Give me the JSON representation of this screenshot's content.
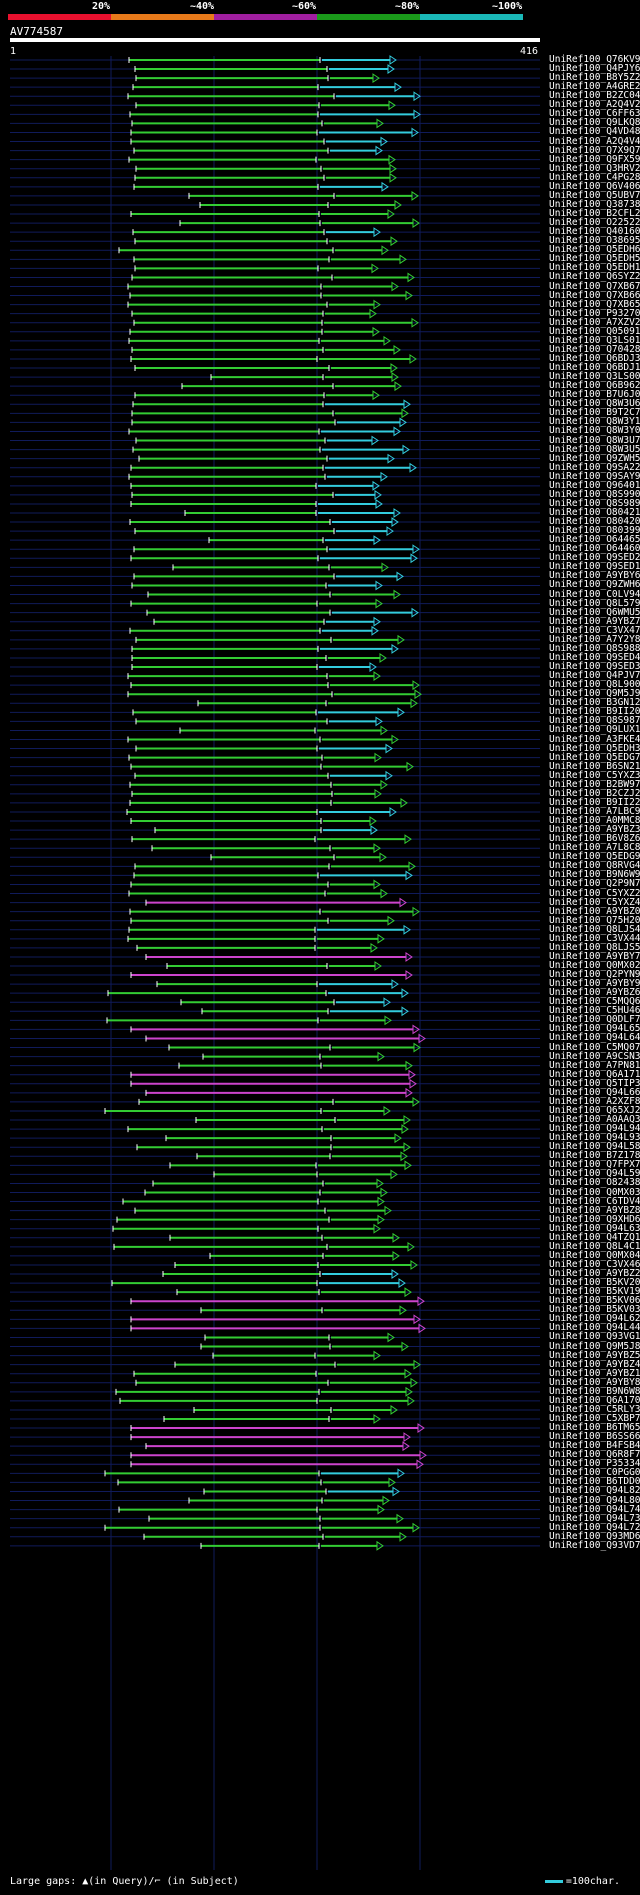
{
  "scale": {
    "labels": [
      "20%",
      "~40%",
      "~60%",
      "~80%",
      "~100%"
    ],
    "colors": [
      "#e8102e",
      "#e87a1a",
      "#a11ea0",
      "#1a9a1a",
      "#1ab8b8"
    ]
  },
  "query_id": "AV774587",
  "ruler": {
    "start": "1",
    "end": "416"
  },
  "colors": {
    "high": "#33cc33",
    "very_high": "#33ccdd",
    "low": "#cc44cc",
    "grid": "#101b5a",
    "gap": "#ffffff"
  },
  "hits": [
    "UniRef100_Q76KV9",
    "UniRef100_Q4PJY6",
    "UniRef100_B8Y5Z2",
    "UniRef100_A4GRE2",
    "UniRef100_B2ZC04",
    "UniRef100_A2Q4V2",
    "UniRef100_C6FF63",
    "UniRef100_Q9LKQ8",
    "UniRef100_Q4VD48",
    "UniRef100_A2Q4V4",
    "UniRef100_Q7X9Q7",
    "UniRef100_Q9FX59",
    "UniRef100_Q3HRV2",
    "UniRef100_C4PG28",
    "UniRef100_Q6V406",
    "UniRef100_Q5UBV7",
    "UniRef100_Q38738",
    "UniRef100_B2CFL2",
    "UniRef100_O22522",
    "UniRef100_Q40160",
    "UniRef100_O38695",
    "UniRef100_Q5EDH6",
    "UniRef100_Q5EDH5",
    "UniRef100_Q5EDH1",
    "UniRef100_Q6SYZ2",
    "UniRef100_Q7XB67",
    "UniRef100_Q7XB66",
    "UniRef100_Q7XB65",
    "UniRef100_P93270",
    "UniRef100_A7XZV2",
    "UniRef100_Q05091",
    "UniRef100_Q3LS01",
    "UniRef100_Q70428",
    "UniRef100_Q6BDJ3",
    "UniRef100_Q6BDJ1",
    "UniRef100_Q3LS00",
    "UniRef100_Q6B962",
    "UniRef100_B7U6J0",
    "UniRef100_Q8W3U6",
    "UniRef100_B9T2C7",
    "UniRef100_Q8W3Y1",
    "UniRef100_Q8W3Y0",
    "UniRef100_Q8W3U7",
    "UniRef100_Q8W3U5",
    "UniRef100_Q9ZWH5",
    "UniRef100_Q9SA22",
    "UniRef100_Q9SAY9",
    "UniRef100_Q96401",
    "UniRef100_Q8S990",
    "UniRef100_Q8S989",
    "UniRef100_O80421",
    "UniRef100_O80420",
    "UniRef100_O80399",
    "UniRef100_O64465",
    "UniRef100_O64460",
    "UniRef100_Q9SED2",
    "UniRef100_Q9SED1",
    "UniRef100_A9YBY6",
    "UniRef100_Q9ZWH6",
    "UniRef100_C0LV94",
    "UniRef100_Q8L579",
    "UniRef100_Q6WMU5",
    "UniRef100_A9YBZ7",
    "UniRef100_C3VX47",
    "UniRef100_A7Y2Y8",
    "UniRef100_Q8S988",
    "UniRef100_Q9SED4",
    "UniRef100_Q9SED3",
    "UniRef100_Q4PJV7",
    "UniRef100_Q8L900",
    "UniRef100_Q9M5J9",
    "UniRef100_B3GN12",
    "UniRef100_B9II20",
    "UniRef100_Q8S987",
    "UniRef100_Q9LUX1",
    "UniRef100_A3FKE4",
    "UniRef100_Q5EDH3",
    "UniRef100_Q5EDG7",
    "UniRef100_B6SN21",
    "UniRef100_C5YXZ3",
    "UniRef100_B2BW97",
    "UniRef100_B2CZJ2",
    "UniRef100_B9II22",
    "UniRef100_A7LBC9",
    "UniRef100_A0MMC8",
    "UniRef100_A9YBZ3",
    "UniRef100_B6V8Z6",
    "UniRef100_A7L8C8",
    "UniRef100_Q5EDG9",
    "UniRef100_Q8RVG4",
    "UniRef100_B9N6W9",
    "UniRef100_Q2P9N7",
    "UniRef100_C5YXZ2",
    "UniRef100_C5YXZ4",
    "UniRef100_A9YBZ0",
    "UniRef100_Q75H20",
    "UniRef100_Q8LJS4",
    "UniRef100_C3VX44",
    "UniRef100_Q8LJS5",
    "UniRef100_A9YBY7",
    "UniRef100_Q0MX02",
    "UniRef100_Q2PYN9",
    "UniRef100_A9YBY9",
    "UniRef100_A9YBZ6",
    "UniRef100_C5MQQ6",
    "UniRef100_C5HU46",
    "UniRef100_Q0DLF7",
    "UniRef100_Q94L65",
    "UniRef100_Q94L64",
    "UniRef100_C5MQ07",
    "UniRef100_A9CSN3",
    "UniRef100_A7PN81",
    "UniRef100_Q6A171",
    "UniRef100_Q5TIP3",
    "UniRef100_Q94L66",
    "UniRef100_A2XZF8",
    "UniRef100_Q65XJ2",
    "UniRef100_A0AAQ3",
    "UniRef100_Q94L94",
    "UniRef100_Q94L93",
    "UniRef100_Q94L58",
    "UniRef100_B7Z178",
    "UniRef100_Q7FPX7",
    "UniRef100_Q94L59",
    "UniRef100_O82438",
    "UniRef100_Q0MX03",
    "UniRef100_C6TDV4",
    "UniRef100_A9YBZ8",
    "UniRef100_Q9XHD6",
    "UniRef100_Q94L63",
    "UniRef100_Q4TZQ1",
    "UniRef100_Q8L4C1",
    "UniRef100_Q0MX04",
    "UniRef100_C3VX46",
    "UniRef100_A9YBZ2",
    "UniRef100_B5KV20",
    "UniRef100_B5KV19",
    "UniRef100_B5KV06",
    "UniRef100_B5KV03",
    "UniRef100_Q94L62",
    "UniRef100_Q94L44",
    "UniRef100_Q93VG1",
    "UniRef100_Q9M5J8",
    "UniRef100_A9YBZ5",
    "UniRef100_A9YBZ4",
    "UniRef100_A9YBZ1",
    "UniRef100_A9YBY8",
    "UniRef100_B9N6W8",
    "UniRef100_Q6A170",
    "UniRef100_C5RLY3",
    "UniRef100_C5XBP7",
    "UniRef100_B6TM65",
    "UniRef100_B6SS66",
    "UniRef100_B4FSB4",
    "UniRef100_Q6R8F7",
    "UniRef100_P35334",
    "UniRef100_C0PGG0",
    "UniRef100_B6TDD0",
    "UniRef100_Q94L82",
    "UniRef100_Q94L80",
    "UniRef100_Q94L74",
    "UniRef100_Q94L73",
    "UniRef100_Q94L72",
    "UniRef100_Q93MD6",
    "UniRef100_Q93VD7"
  ],
  "footer": {
    "gaps_text": "Large gaps: ▲(in Query)/⌐ (in Subject)",
    "legend_text": "=100char."
  }
}
